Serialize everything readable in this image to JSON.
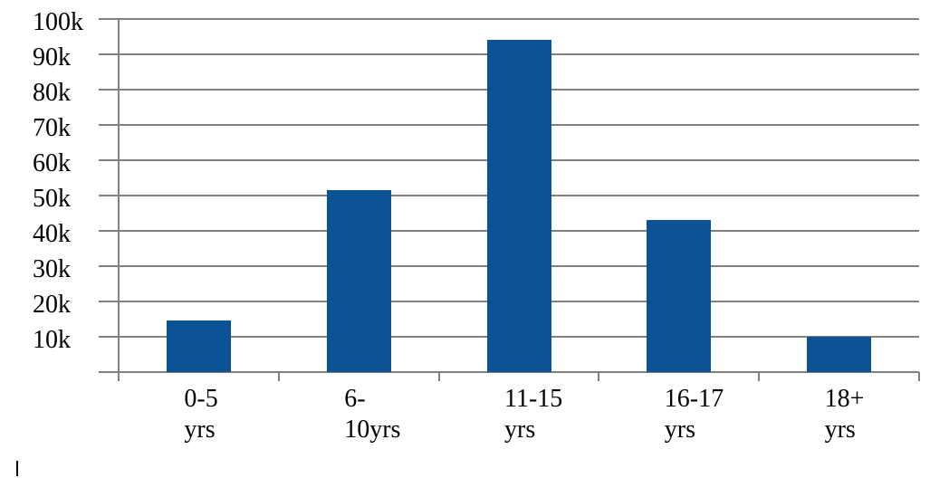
{
  "chart_data": {
    "type": "bar",
    "title": "",
    "xlabel": "",
    "ylabel": "",
    "categories": [
      "0-5 yrs",
      "6-10yrs",
      "11-15 yrs",
      "16-17 yrs",
      "18+ yrs"
    ],
    "category_label_lines": [
      [
        "0-5",
        "yrs"
      ],
      [
        "6-",
        "10yrs"
      ],
      [
        "11-15",
        "yrs"
      ],
      [
        "16-17",
        "yrs"
      ],
      [
        "18+",
        "yrs"
      ]
    ],
    "values": [
      14500,
      51500,
      94000,
      43000,
      10000
    ],
    "ylim": [
      0,
      100000
    ],
    "ytick_step": 10000,
    "ytick_labels": [
      "10k",
      "20k",
      "30k",
      "40k",
      "50k",
      "60k",
      "70k",
      "80k",
      "90k",
      "100k"
    ],
    "grid": true,
    "legend": false
  },
  "colors": {
    "bar": "#0B5394",
    "gridline": "#808080",
    "axis": "#808080",
    "label_text": "#000000",
    "background": "#FFFFFF"
  }
}
